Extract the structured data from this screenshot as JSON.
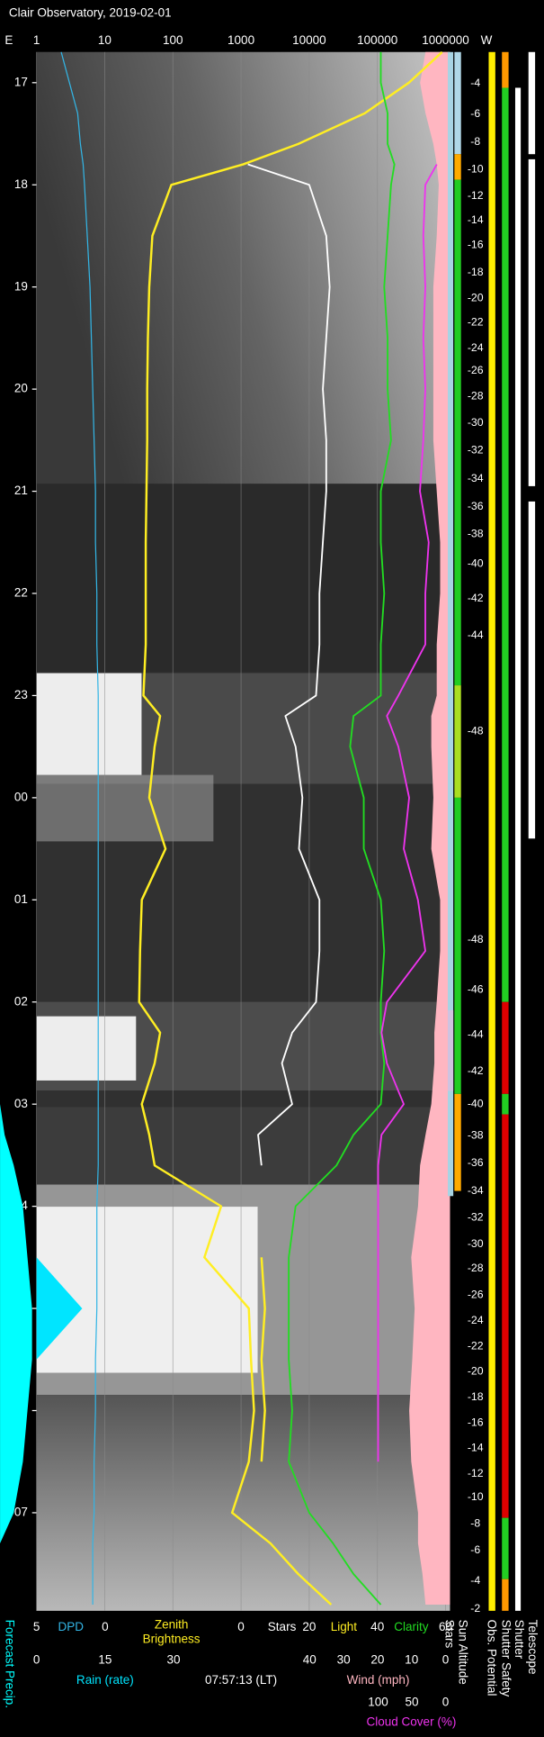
{
  "chart_data": {
    "type": "observatory",
    "title": "Clair Observatory, 2019-02-01",
    "edge_labels": {
      "left": "E",
      "right": "W"
    },
    "timestamp": "07:57:13 (LT)",
    "xlim": [
      1,
      1000000
    ],
    "log": true,
    "xticks": [
      1,
      10,
      100,
      1000,
      10000,
      100000,
      1000000
    ],
    "grid": true,
    "ylim": [
      16.7,
      31.96
    ],
    "yticks": [
      17,
      18,
      19,
      20,
      21,
      22,
      23,
      {
        "value": 24,
        "label": "00"
      },
      {
        "value": 25,
        "label": "01"
      },
      {
        "value": 26,
        "label": "02"
      },
      {
        "value": 27,
        "label": "03"
      },
      {
        "value": 28,
        "label": "04"
      },
      {
        "value": 29,
        "label": "05"
      },
      {
        "value": 30,
        "label": "06"
      },
      {
        "value": 31,
        "label": "07"
      }
    ],
    "axes": {
      "dpd": {
        "lim": [
          5,
          0
        ],
        "ticks": [
          5,
          0
        ]
      },
      "count": {
        "lim": [
          0,
          60
        ],
        "ticks": [
          0,
          20,
          40,
          60
        ]
      },
      "rain": {
        "lim": [
          0,
          30
        ],
        "ticks": [
          0,
          15,
          30
        ]
      },
      "wind": {
        "lim": [
          40,
          0
        ],
        "ticks": [
          40,
          30,
          20,
          10,
          0
        ]
      },
      "cloud": {
        "lim": [
          100,
          0
        ],
        "ticks": [
          100,
          50,
          0
        ]
      }
    },
    "x": [
      16.7,
      17.0,
      17.3,
      17.6,
      17.8,
      18.0,
      18.5,
      19.0,
      19.5,
      20.0,
      20.5,
      21.0,
      21.5,
      22.0,
      22.5,
      23.0,
      23.2,
      23.5,
      24.0,
      24.5,
      25.0,
      25.5,
      26.0,
      26.3,
      26.6,
      27.0,
      27.3,
      27.6,
      28.0,
      28.5,
      29.0,
      29.5,
      30.0,
      30.5,
      31.0,
      31.3,
      31.6,
      31.9
    ],
    "series": [
      {
        "name": "DPD",
        "color": "#33b5e5",
        "axis": "dpd",
        "style": "line",
        "values": [
          3.2,
          2.6,
          2.0,
          1.8,
          1.6,
          1.5,
          1.3,
          1.1,
          1.0,
          0.9,
          0.8,
          0.7,
          0.7,
          0.6,
          0.6,
          0.5,
          0.5,
          0.5,
          0.5,
          0.5,
          0.5,
          0.5,
          0.5,
          0.5,
          0.5,
          0.5,
          0.5,
          0.5,
          0.6,
          0.6,
          0.6,
          0.7,
          0.7,
          0.8,
          0.8,
          0.9,
          0.9,
          0.9
        ]
      },
      {
        "name": "Zenith Brightness",
        "color": "#ffee22",
        "axis": "x",
        "style": "line",
        "values": [
          890000,
          290000,
          65000,
          6900,
          1070,
          95,
          50,
          45,
          43,
          42,
          42,
          41,
          40,
          40,
          40,
          37,
          65,
          54,
          45,
          78,
          35,
          33,
          32,
          65,
          54,
          35,
          45,
          54,
          510,
          290,
          1300,
          1400,
          1550,
          1300,
          740,
          2700,
          6900,
          21000
        ]
      },
      {
        "name": "Stars",
        "color": "#ffffff",
        "axis": "count",
        "style": "line",
        "values": [
          null,
          null,
          null,
          null,
          2,
          20,
          25,
          26,
          25,
          24,
          25,
          25,
          24,
          23,
          23,
          22,
          13,
          16,
          18,
          17,
          23,
          23,
          22,
          15,
          12,
          15,
          5,
          6,
          null,
          null,
          null,
          null,
          null,
          null,
          null,
          null,
          null,
          null
        ]
      },
      {
        "name": "Light",
        "color": "#ffee22",
        "axis": "count",
        "style": "line",
        "values": [
          null,
          null,
          null,
          null,
          null,
          null,
          null,
          null,
          null,
          null,
          null,
          null,
          null,
          null,
          null,
          null,
          null,
          null,
          null,
          null,
          null,
          null,
          null,
          null,
          null,
          null,
          null,
          null,
          null,
          6,
          7,
          6,
          7,
          6,
          null,
          null,
          null,
          null
        ]
      },
      {
        "name": "Clarity",
        "color": "#22dd22",
        "axis": "count",
        "style": "line",
        "values": [
          41,
          41,
          43,
          43,
          45,
          44,
          43,
          42,
          43,
          43,
          44,
          41,
          41,
          42,
          41,
          41,
          33,
          32,
          36,
          36,
          41,
          42,
          41,
          41,
          42,
          41,
          33,
          28,
          16,
          14,
          14,
          14,
          15,
          14,
          20,
          27,
          33,
          41
        ]
      },
      {
        "name": "Rain (rate)",
        "color": "#00e5ff",
        "axis": "rain",
        "style": "area",
        "values": [
          0,
          0,
          0,
          0,
          0,
          0,
          0,
          0,
          0,
          0,
          0,
          0,
          0,
          0,
          0,
          0,
          0,
          0,
          0,
          0,
          0,
          0,
          0,
          0,
          0,
          0,
          0,
          0,
          0,
          0,
          10,
          0,
          0,
          0,
          0,
          0,
          0,
          0
        ]
      },
      {
        "name": "Wind (mph)",
        "color": "#ffb6c1",
        "axis": "wind",
        "style": "area",
        "values": [
          5.9,
          7.5,
          5.9,
          3.6,
          2.6,
          2.0,
          2.6,
          3.6,
          3.6,
          3.6,
          3.6,
          2.6,
          1.6,
          1.6,
          2.6,
          2.6,
          4.2,
          4.2,
          3.6,
          4.2,
          1.6,
          1.6,
          2.6,
          3.3,
          3.3,
          4.2,
          5.9,
          7.5,
          8.1,
          10.1,
          9.1,
          9.8,
          10.7,
          10.1,
          8.1,
          8.1,
          6.8,
          5.9
        ]
      },
      {
        "name": "Cloud Cover (%)",
        "color": "#ee33ee",
        "axis": "cloud",
        "style": "line",
        "values": [
          null,
          null,
          null,
          null,
          13,
          30,
          33,
          30,
          33,
          30,
          33,
          38,
          25,
          30,
          30,
          70,
          87,
          70,
          54,
          62,
          41,
          30,
          87,
          95,
          87,
          62,
          95,
          100,
          100,
          100,
          100,
          100,
          100,
          100,
          null,
          null,
          null,
          null
        ]
      },
      {
        "name": "Forecast Precip.",
        "color": "#00ffff",
        "axis": "rain",
        "style": "margin",
        "values": [
          0,
          0,
          0,
          0,
          0,
          0,
          0,
          0,
          0,
          0,
          0,
          0,
          0,
          0,
          0,
          0,
          0,
          0,
          0,
          0,
          0,
          0,
          0,
          0,
          0,
          0,
          1,
          3,
          5,
          6,
          7,
          7,
          6,
          5,
          3,
          0,
          0,
          0
        ]
      }
    ],
    "sun_altitude": {
      "x": [
        17.01,
        17.31,
        17.58,
        17.85,
        18.11,
        18.35,
        18.59,
        18.86,
        19.11,
        19.35,
        19.6,
        19.82,
        20.07,
        20.33,
        20.6,
        20.88,
        21.15,
        21.42,
        21.71,
        22.05,
        22.41,
        23.35,
        25.39,
        25.88,
        26.32,
        26.68,
        27.0,
        27.31,
        27.58,
        27.85,
        28.11,
        28.37,
        28.61,
        28.87,
        29.12,
        29.37,
        29.62,
        29.87,
        30.12,
        30.37,
        30.62,
        30.85,
        31.11,
        31.37,
        31.67,
        31.94
      ],
      "values": [
        -4,
        -6,
        -8,
        -10,
        -12,
        -14,
        -16,
        -18,
        -20,
        -22,
        -24,
        -26,
        -28,
        -30,
        -32,
        -34,
        -36,
        -38,
        -40,
        -42,
        -44,
        -48,
        -48,
        -46,
        -44,
        -42,
        -40,
        -38,
        -36,
        -34,
        -32,
        -30,
        -28,
        -26,
        -24,
        -22,
        -20,
        -18,
        -16,
        -14,
        -12,
        -10,
        -8,
        -6,
        -4,
        -2
      ]
    },
    "tracks": [
      {
        "name": "Stars",
        "segments": [
          {
            "start": 16.7,
            "end": 27.9,
            "color": "#a8d4e4"
          },
          {
            "start": 26.08,
            "end": 26.87,
            "color": "#cfc3e0"
          }
        ]
      },
      {
        "name": "Sun Altitude",
        "segments": [
          {
            "start": 16.7,
            "end": 17.7,
            "color": "#b0d8e8"
          },
          {
            "start": 17.7,
            "end": 17.95,
            "color": "#ffaa00"
          },
          {
            "start": 17.95,
            "end": 22.9,
            "color": "#22cc22"
          },
          {
            "start": 22.9,
            "end": 24.0,
            "color": "#aadd22"
          },
          {
            "start": 24.0,
            "end": 26.9,
            "color": "#22cc22"
          },
          {
            "start": 26.9,
            "end": 27.85,
            "color": "#ffaa00"
          }
        ]
      },
      {
        "name": "Obs. Potential",
        "segments": [
          {
            "start": 16.7,
            "end": 31.96,
            "color": "#ffee00"
          }
        ]
      },
      {
        "name": "Shutter Safety",
        "segments": [
          {
            "start": 16.7,
            "end": 17.05,
            "color": "#ff9900"
          },
          {
            "start": 17.05,
            "end": 26.0,
            "color": "#22cc22"
          },
          {
            "start": 26.0,
            "end": 26.9,
            "color": "#dd0000"
          },
          {
            "start": 26.9,
            "end": 27.1,
            "color": "#22cc22"
          },
          {
            "start": 27.1,
            "end": 31.05,
            "color": "#dd0000"
          },
          {
            "start": 31.05,
            "end": 31.65,
            "color": "#22cc22"
          },
          {
            "start": 31.65,
            "end": 31.96,
            "color": "#ff9900"
          }
        ]
      },
      {
        "name": "Shutter",
        "segments": [
          {
            "start": 17.05,
            "end": 31.96,
            "color": "#ffffff"
          }
        ]
      },
      {
        "name": "Telescope",
        "segments": [
          {
            "start": 16.7,
            "end": 17.7,
            "color": "#ffffff"
          },
          {
            "start": 17.75,
            "end": 20.95,
            "color": "#ffffff"
          },
          {
            "start": 21.1,
            "end": 24.4,
            "color": "#ffffff"
          }
        ]
      }
    ]
  }
}
